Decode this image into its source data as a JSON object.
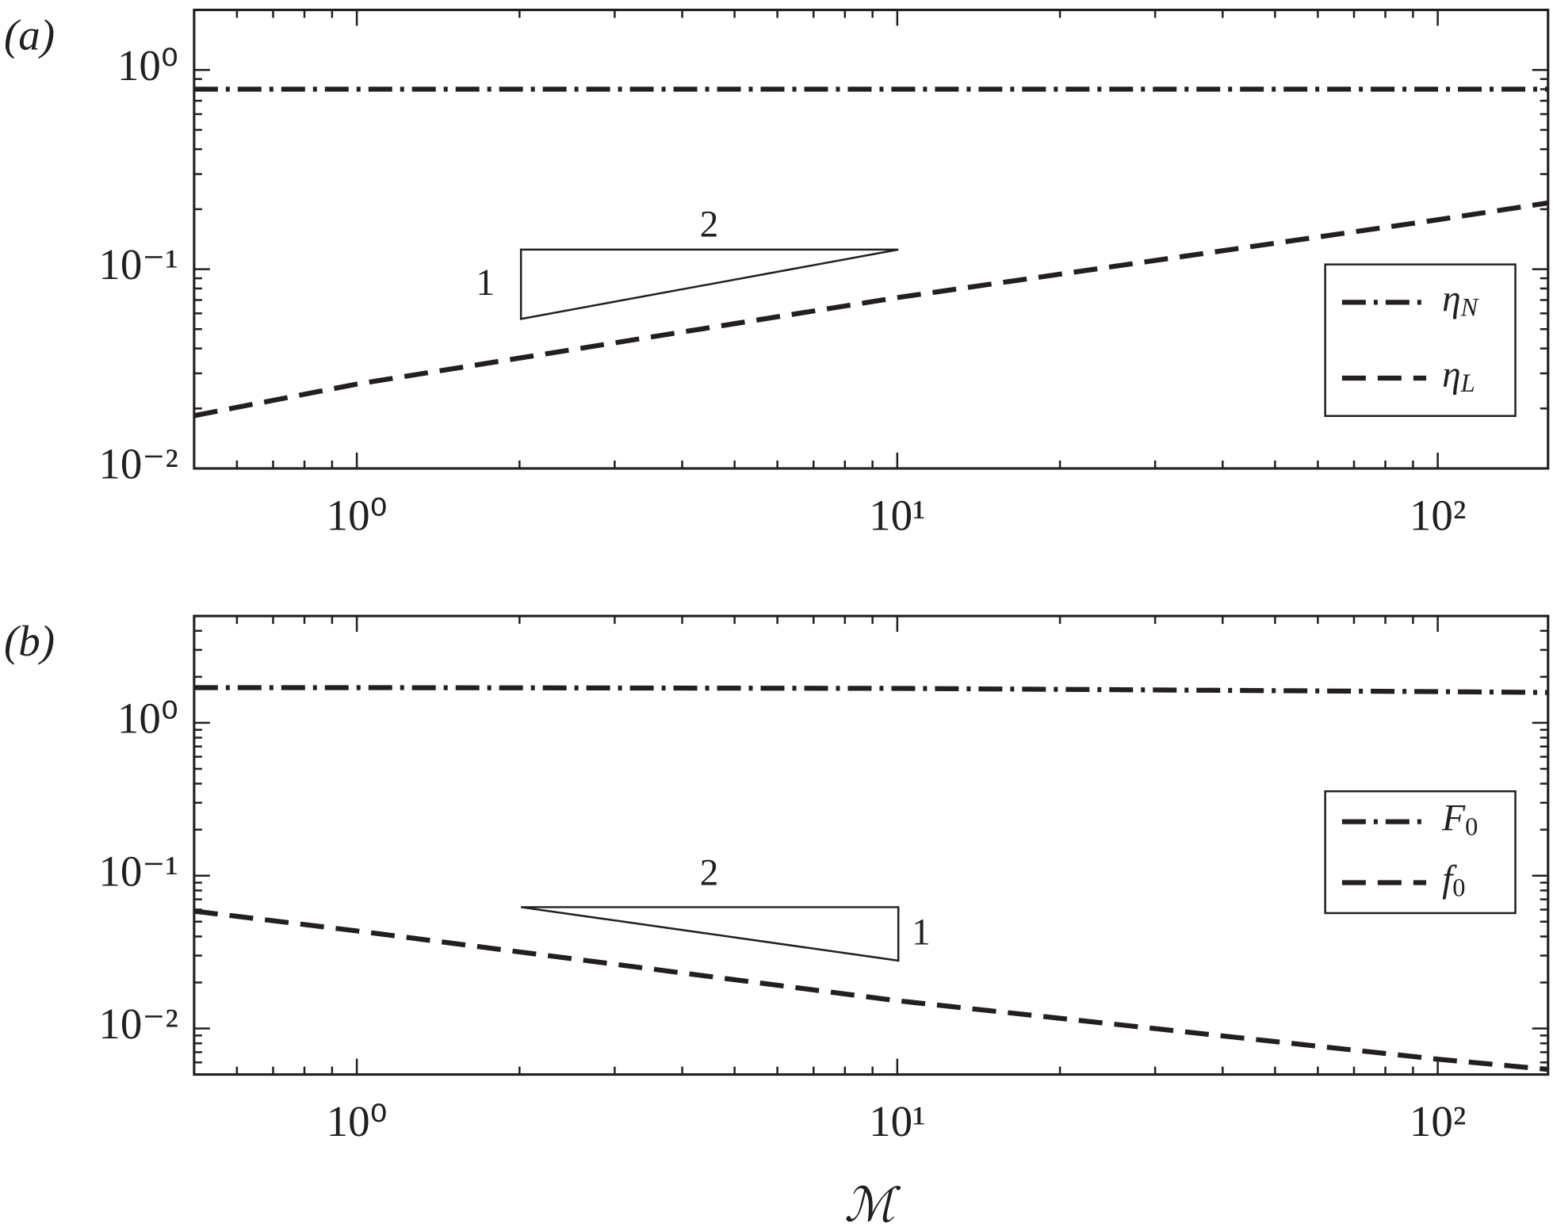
{
  "chart_data": [
    {
      "type": "line",
      "panel_label": "(a)",
      "xscale": "log",
      "yscale": "log",
      "x": [
        0.5,
        1,
        10,
        100,
        160
      ],
      "series": [
        {
          "name": "ηN",
          "color": "#231f20",
          "dash": "dashdot",
          "values": [
            0.8,
            0.8,
            0.8,
            0.8,
            0.8
          ]
        },
        {
          "name": "ηL",
          "color": "#231f20",
          "dash": "dashed",
          "values": [
            0.0184,
            0.0265,
            0.072,
            0.177,
            0.215
          ]
        }
      ],
      "xlim": [
        0.5,
        160
      ],
      "ylim": [
        0.01,
        2
      ],
      "xticks": [
        {
          "value": 1,
          "label": "10⁰"
        },
        {
          "value": 10,
          "label": "10¹"
        },
        {
          "value": 100,
          "label": "10²"
        }
      ],
      "yticks": [
        {
          "value": 0.01,
          "label": "10⁻²"
        },
        {
          "value": 0.1,
          "label": "10⁻¹"
        },
        {
          "value": 1,
          "label": "10⁰"
        }
      ],
      "xminorticks": [
        0.6,
        0.7,
        0.8,
        0.9,
        2,
        3,
        4,
        5,
        6,
        7,
        8,
        9,
        20,
        30,
        40,
        50,
        60,
        70,
        80,
        90
      ],
      "yminorticks": [
        0.02,
        0.03,
        0.04,
        0.05,
        0.06,
        0.07,
        0.08,
        0.09,
        0.2,
        0.3,
        0.4,
        0.5,
        0.6,
        0.7,
        0.8,
        0.9
      ],
      "legend": "right",
      "slope_run": "2",
      "slope_rise": "1"
    },
    {
      "type": "line",
      "panel_label": "(b)",
      "xscale": "log",
      "yscale": "log",
      "xlabel": "ℳ",
      "x": [
        0.5,
        1,
        10,
        100,
        160
      ],
      "series": [
        {
          "name": "F0",
          "color": "#231f20",
          "dash": "dashdot",
          "values": [
            1.7,
            1.7,
            1.68,
            1.6,
            1.58
          ]
        },
        {
          "name": "f0",
          "color": "#231f20",
          "dash": "dashed",
          "values": [
            0.0586,
            0.0435,
            0.0152,
            0.0063,
            0.0054
          ]
        }
      ],
      "xlim": [
        0.5,
        160
      ],
      "ylim": [
        0.005,
        5
      ],
      "xticks": [
        {
          "value": 1,
          "label": "10⁰"
        },
        {
          "value": 10,
          "label": "10¹"
        },
        {
          "value": 100,
          "label": "10²"
        }
      ],
      "yticks": [
        {
          "value": 0.01,
          "label": "10⁻²"
        },
        {
          "value": 0.1,
          "label": "10⁻¹"
        },
        {
          "value": 1,
          "label": "10⁰"
        }
      ],
      "xminorticks": [
        0.6,
        0.7,
        0.8,
        0.9,
        2,
        3,
        4,
        5,
        6,
        7,
        8,
        9,
        20,
        30,
        40,
        50,
        60,
        70,
        80,
        90
      ],
      "yminorticks": [
        0.006,
        0.007,
        0.008,
        0.009,
        0.02,
        0.03,
        0.04,
        0.05,
        0.06,
        0.07,
        0.08,
        0.09,
        0.2,
        0.3,
        0.4,
        0.5,
        0.6,
        0.7,
        0.8,
        0.9,
        2,
        3,
        4
      ],
      "legend": "right",
      "slope_run": "2",
      "slope_rise": "1"
    }
  ]
}
